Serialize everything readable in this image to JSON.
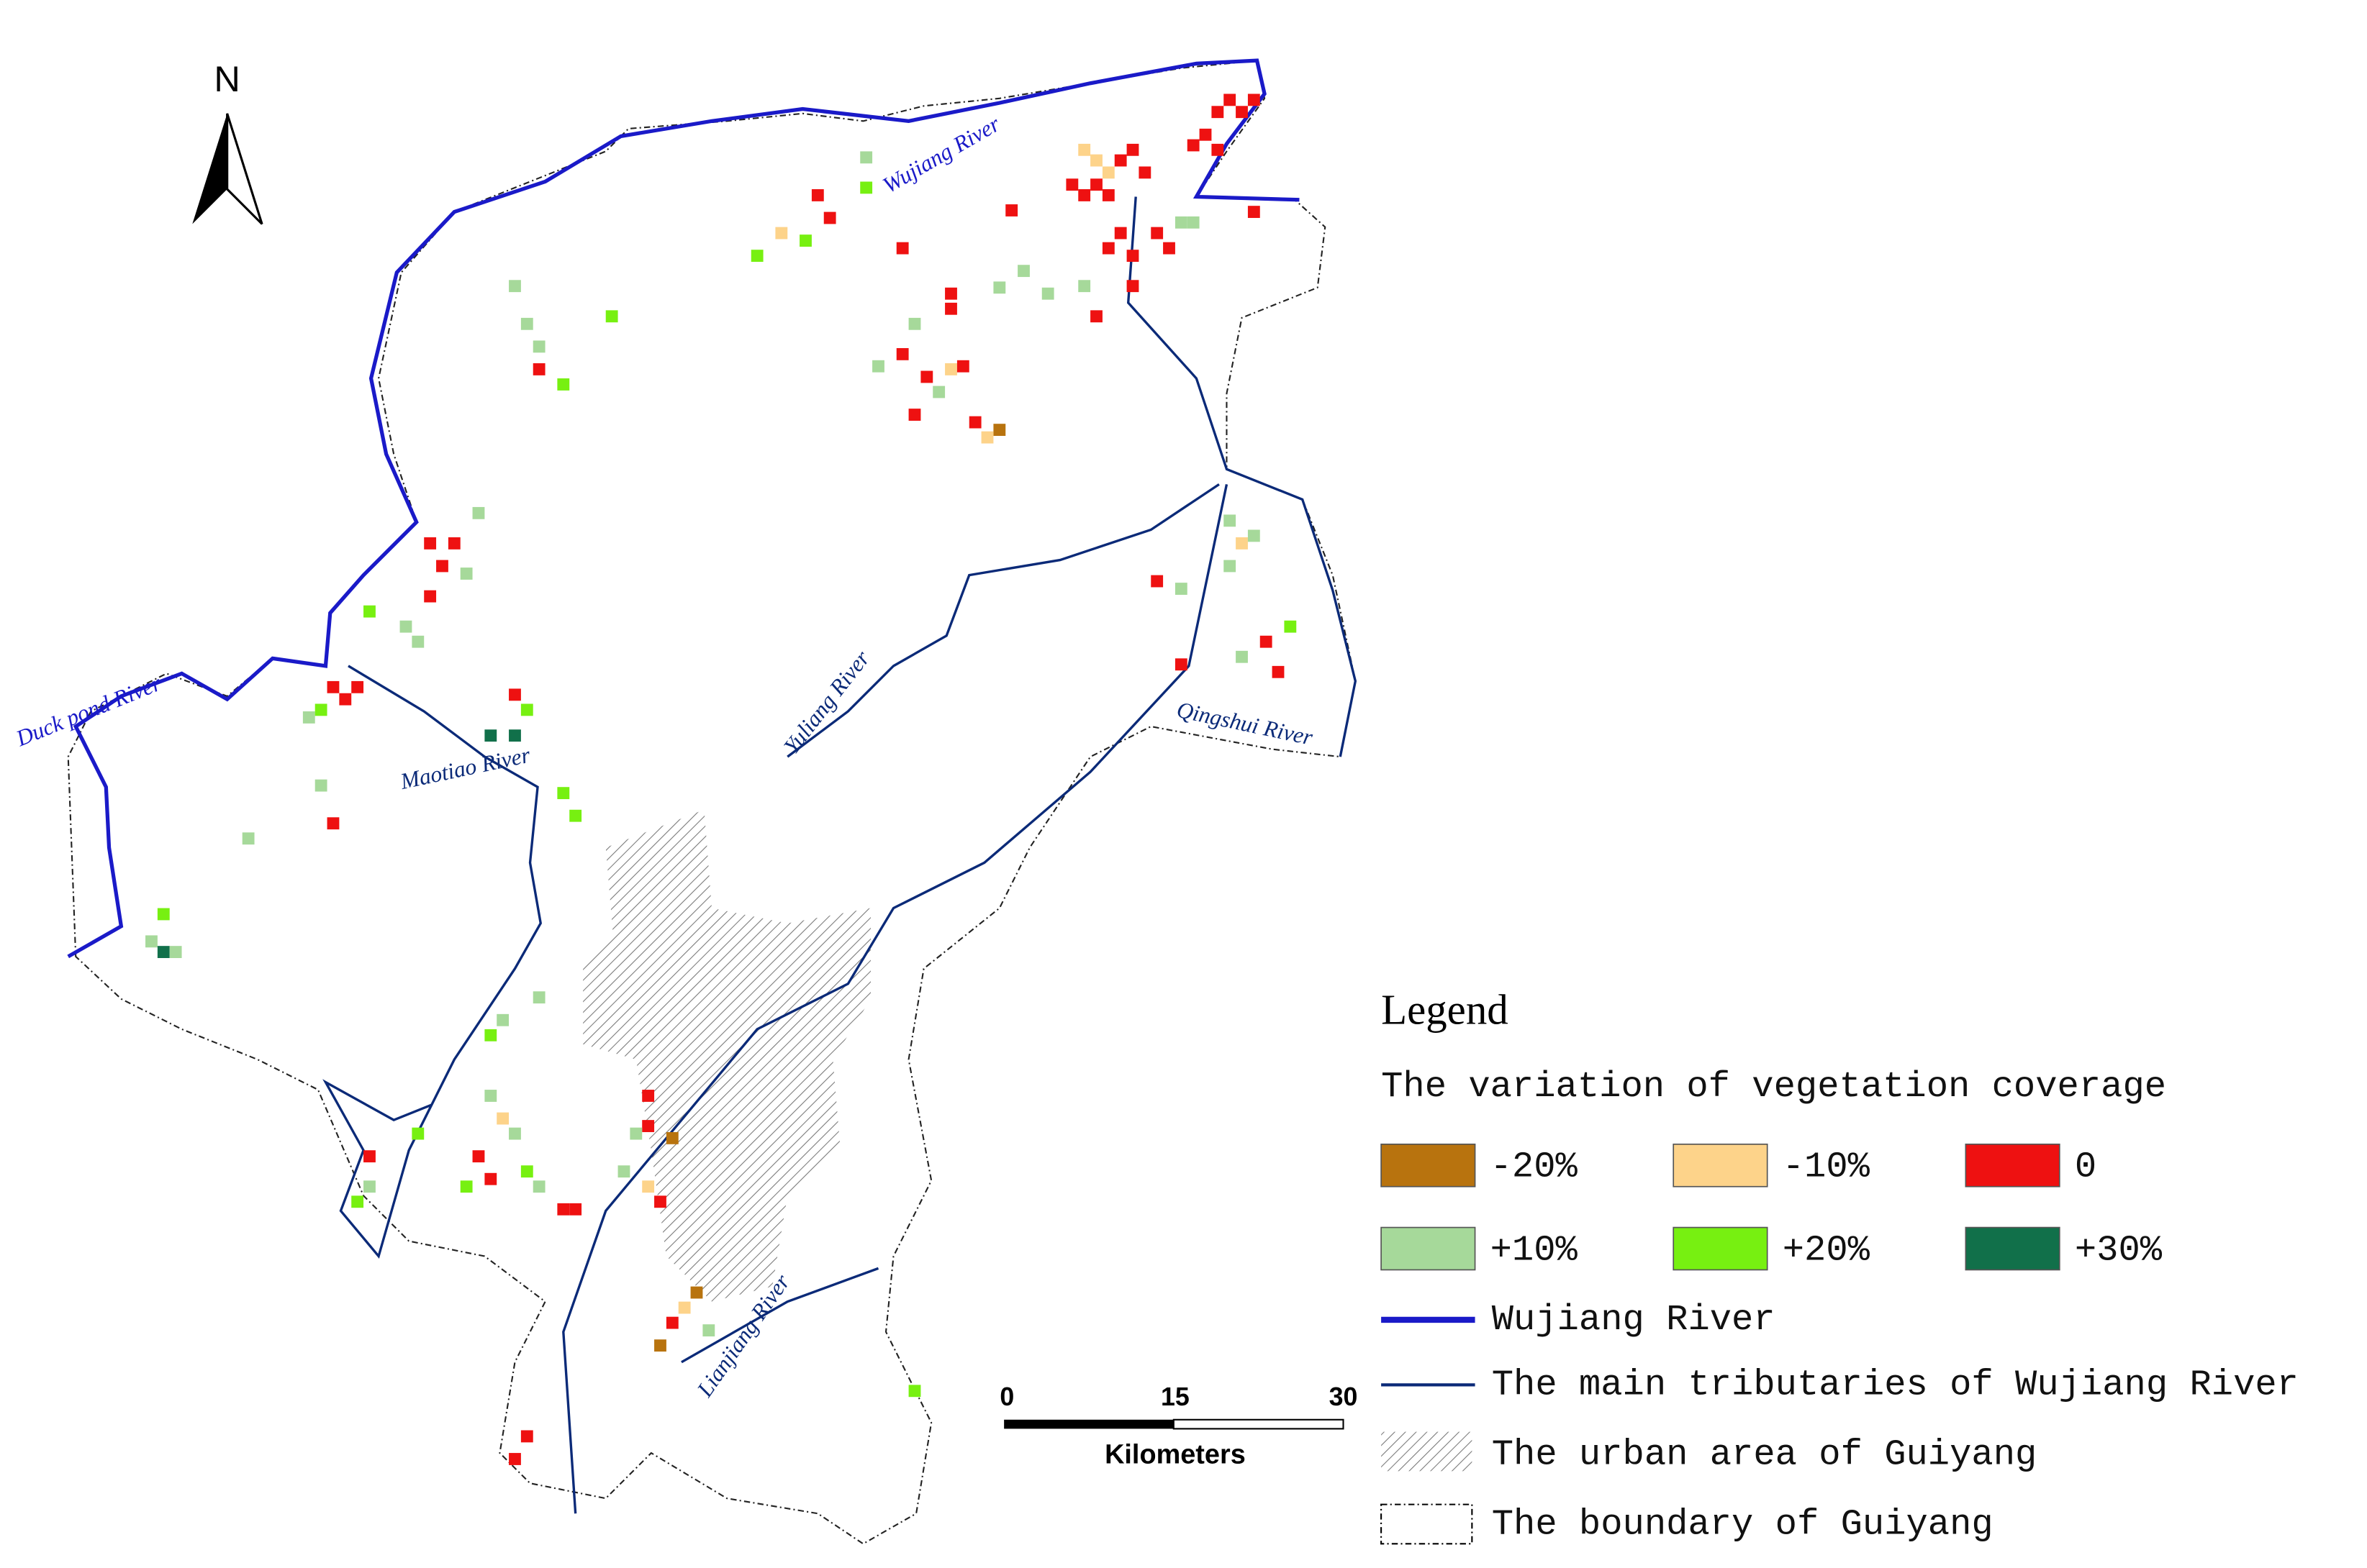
{
  "north": "N",
  "rivers": [
    {
      "label": "Wujiang River"
    },
    {
      "label": "Duck pond River"
    },
    {
      "label": "Maotiao River"
    },
    {
      "label": "Yuliang River"
    },
    {
      "label": "Qingshui River"
    },
    {
      "label": "Lianjiang River"
    }
  ],
  "scale": {
    "ticks": [
      0,
      15,
      30
    ],
    "unit": "Kilometers"
  },
  "legend": {
    "title": "Legend",
    "subtitle": "The variation of vegetation coverage",
    "classes": [
      {
        "label": "-20%",
        "color": "#b8730e"
      },
      {
        "label": "-10%",
        "color": "#fdd38a"
      },
      {
        "label": "0",
        "color": "#ee1111"
      },
      {
        "label": "+10%",
        "color": "#a6d99a"
      },
      {
        "label": "+20%",
        "color": "#77f011"
      },
      {
        "label": "+30%",
        "color": "#11704a"
      }
    ],
    "lines": [
      {
        "label": "Wujiang River"
      },
      {
        "label": "The main tributaries of Wujiang River"
      },
      {
        "label": "The urban area of Guiyang"
      },
      {
        "label": "The boundary of Guiyang"
      }
    ]
  }
}
